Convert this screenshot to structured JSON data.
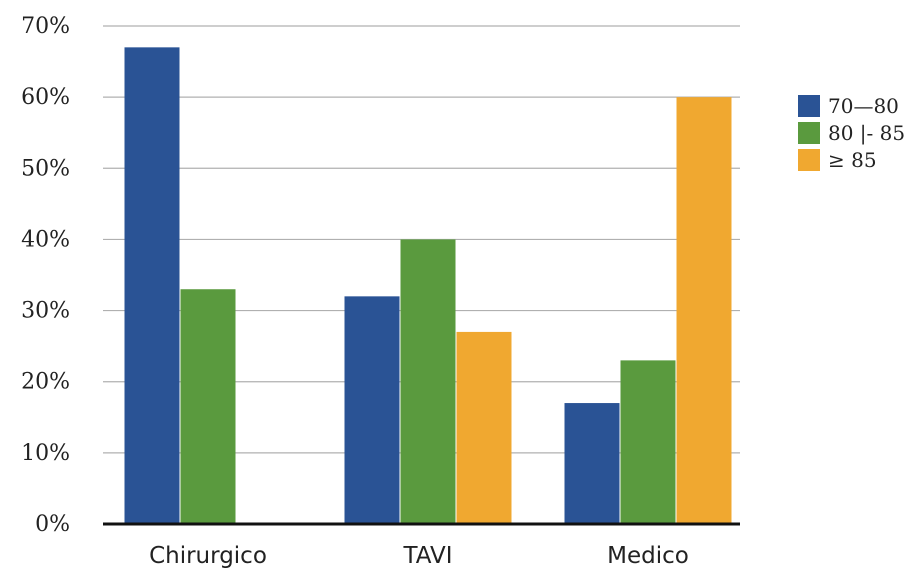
{
  "chart_data": {
    "type": "bar",
    "categories": [
      "Chirurgico",
      "TAVI",
      "Medico"
    ],
    "series": [
      {
        "name": "70—80",
        "color": "#2a5395",
        "values": [
          67,
          32,
          17
        ]
      },
      {
        "name": "80 |- 85",
        "color": "#5a9a3e",
        "values": [
          33,
          40,
          23
        ]
      },
      {
        "name": "≥ 85",
        "color": "#f0a830",
        "values": [
          0,
          27,
          60
        ]
      }
    ],
    "y_ticks": [
      "0%",
      "10%",
      "20%",
      "30%",
      "40%",
      "50%",
      "60%",
      "70%"
    ],
    "ylim": [
      0,
      70
    ],
    "grid": true,
    "legend_position": "right",
    "title": "",
    "xlabel": "",
    "ylabel": ""
  }
}
